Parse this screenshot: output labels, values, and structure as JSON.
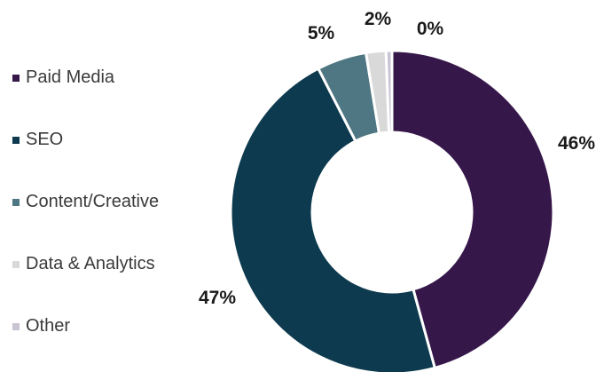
{
  "chart_data": {
    "type": "pie",
    "variant": "donut",
    "legend_position": "left",
    "categories": [
      "Paid Media",
      "SEO",
      "Content/Creative",
      "Data & Analytics",
      "Other"
    ],
    "values": [
      46,
      47,
      5,
      2,
      0
    ],
    "value_labels": [
      "46%",
      "47%",
      "5%",
      "2%",
      "0%"
    ],
    "colors": [
      "#36174a",
      "#0d3a4e",
      "#4f7683",
      "#d9d9d9",
      "#c9c3d3"
    ]
  }
}
